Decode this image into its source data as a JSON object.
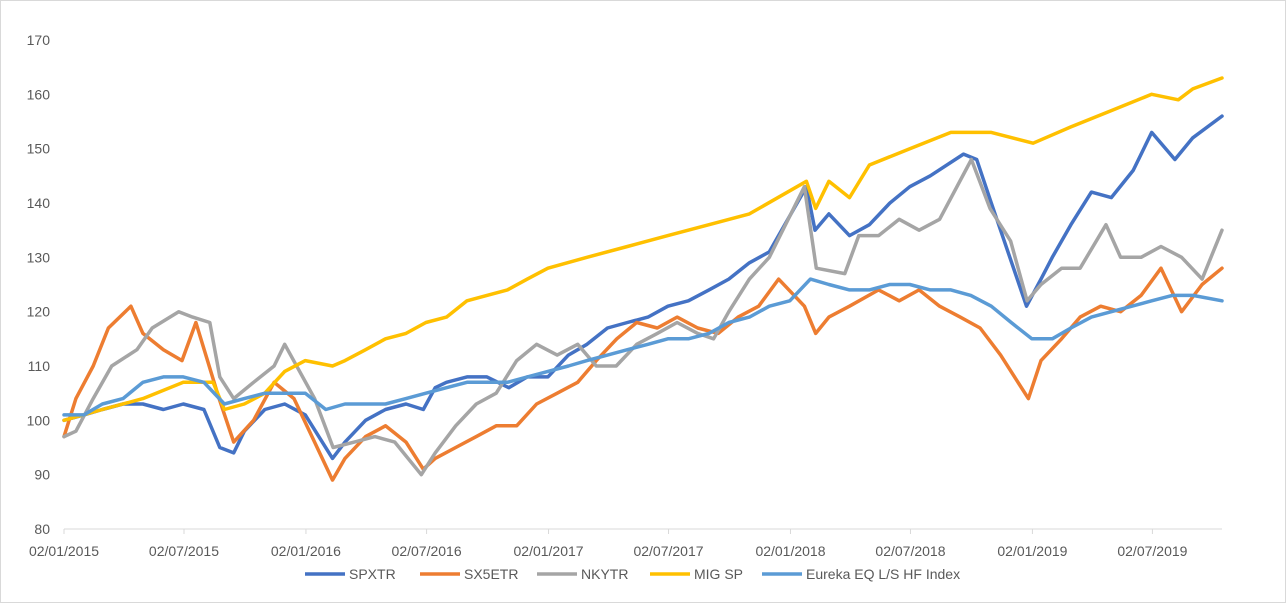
{
  "chart_data": {
    "type": "line",
    "title": "",
    "xlabel": "",
    "ylabel": "",
    "ylim": [
      80,
      170
    ],
    "xlim": [
      "2015-01-02",
      "2019-10-15"
    ],
    "yticks": [
      "80",
      "90",
      "100",
      "110",
      "120",
      "130",
      "140",
      "150",
      "160",
      "170"
    ],
    "xticks": [
      {
        "date": "2015-01-02",
        "label": "02/01/2015"
      },
      {
        "date": "2015-07-02",
        "label": "02/07/2015"
      },
      {
        "date": "2016-01-02",
        "label": "02/01/2016"
      },
      {
        "date": "2016-07-02",
        "label": "02/07/2016"
      },
      {
        "date": "2017-01-02",
        "label": "02/01/2017"
      },
      {
        "date": "2017-07-02",
        "label": "02/07/2017"
      },
      {
        "date": "2018-01-02",
        "label": "02/01/2018"
      },
      {
        "date": "2018-07-02",
        "label": "02/07/2018"
      },
      {
        "date": "2019-01-02",
        "label": "02/01/2019"
      },
      {
        "date": "2019-07-02",
        "label": "02/07/2019"
      }
    ],
    "grid": "horizontal-none",
    "legend": "bottom",
    "series": [
      {
        "name": "SPXTR",
        "color": "#4472c4",
        "x": [
          "2015-01-02",
          "2015-02-01",
          "2015-03-01",
          "2015-04-01",
          "2015-05-01",
          "2015-06-01",
          "2015-07-01",
          "2015-08-01",
          "2015-08-25",
          "2015-09-15",
          "2015-10-01",
          "2015-11-01",
          "2015-12-01",
          "2016-01-01",
          "2016-02-11",
          "2016-03-01",
          "2016-04-01",
          "2016-05-01",
          "2016-06-01",
          "2016-06-27",
          "2016-07-15",
          "2016-08-01",
          "2016-09-01",
          "2016-10-01",
          "2016-11-03",
          "2016-12-01",
          "2017-01-01",
          "2017-02-01",
          "2017-03-01",
          "2017-04-01",
          "2017-05-01",
          "2017-06-01",
          "2017-07-01",
          "2017-08-01",
          "2017-09-01",
          "2017-10-01",
          "2017-11-01",
          "2017-12-01",
          "2018-01-26",
          "2018-02-08",
          "2018-03-01",
          "2018-04-01",
          "2018-05-01",
          "2018-06-01",
          "2018-07-01",
          "2018-08-01",
          "2018-09-20",
          "2018-10-10",
          "2018-11-01",
          "2018-12-24",
          "2019-01-15",
          "2019-02-01",
          "2019-03-01",
          "2019-04-01",
          "2019-05-01",
          "2019-06-03",
          "2019-07-01",
          "2019-08-05",
          "2019-09-01",
          "2019-10-15"
        ],
        "values": [
          100,
          101,
          102,
          103,
          103,
          102,
          103,
          102,
          95,
          94,
          98,
          102,
          103,
          101,
          93,
          96,
          100,
          102,
          103,
          102,
          106,
          107,
          108,
          108,
          106,
          108,
          108,
          112,
          114,
          117,
          118,
          119,
          121,
          122,
          124,
          126,
          129,
          131,
          143,
          135,
          138,
          134,
          136,
          140,
          143,
          145,
          149,
          148,
          140,
          121,
          126,
          130,
          136,
          142,
          141,
          146,
          153,
          148,
          152,
          156
        ]
      },
      {
        "name": "SX5ETR",
        "color": "#ed7d31",
        "x": [
          "2015-01-02",
          "2015-01-20",
          "2015-02-15",
          "2015-03-10",
          "2015-04-13",
          "2015-05-01",
          "2015-06-01",
          "2015-06-29",
          "2015-07-20",
          "2015-08-24",
          "2015-09-15",
          "2015-10-15",
          "2015-11-15",
          "2015-12-15",
          "2016-01-15",
          "2016-02-11",
          "2016-03-01",
          "2016-04-01",
          "2016-05-01",
          "2016-06-01",
          "2016-06-27",
          "2016-07-15",
          "2016-08-15",
          "2016-09-15",
          "2016-10-15",
          "2016-11-15",
          "2016-12-15",
          "2017-01-15",
          "2017-02-15",
          "2017-03-15",
          "2017-04-15",
          "2017-05-15",
          "2017-06-15",
          "2017-07-15",
          "2017-08-15",
          "2017-09-15",
          "2017-10-15",
          "2017-11-15",
          "2017-12-15",
          "2018-01-23",
          "2018-02-09",
          "2018-03-01",
          "2018-04-01",
          "2018-05-15",
          "2018-06-15",
          "2018-07-15",
          "2018-08-15",
          "2018-09-15",
          "2018-10-15",
          "2018-11-15",
          "2018-12-27",
          "2019-01-15",
          "2019-02-15",
          "2019-03-15",
          "2019-04-15",
          "2019-05-15",
          "2019-06-15",
          "2019-07-15",
          "2019-08-15",
          "2019-09-15",
          "2019-10-15"
        ],
        "values": [
          97,
          104,
          110,
          117,
          121,
          116,
          113,
          111,
          118,
          104,
          96,
          100,
          107,
          104,
          96,
          89,
          93,
          97,
          99,
          96,
          91,
          93,
          95,
          97,
          99,
          99,
          103,
          105,
          107,
          111,
          115,
          118,
          117,
          119,
          117,
          116,
          119,
          121,
          126,
          121,
          116,
          119,
          121,
          124,
          122,
          124,
          121,
          119,
          117,
          112,
          104,
          111,
          115,
          119,
          121,
          120,
          123,
          128,
          120,
          125,
          128
        ]
      },
      {
        "name": "NKYTR",
        "color": "#a5a5a5",
        "x": [
          "2015-01-02",
          "2015-01-20",
          "2015-02-15",
          "2015-03-15",
          "2015-04-22",
          "2015-05-15",
          "2015-06-24",
          "2015-07-15",
          "2015-08-10",
          "2015-08-25",
          "2015-09-15",
          "2015-10-15",
          "2015-11-15",
          "2015-12-01",
          "2016-01-15",
          "2016-02-12",
          "2016-03-15",
          "2016-04-15",
          "2016-05-15",
          "2016-06-24",
          "2016-07-15",
          "2016-08-15",
          "2016-09-15",
          "2016-10-15",
          "2016-11-15",
          "2016-12-15",
          "2017-01-15",
          "2017-02-15",
          "2017-03-15",
          "2017-04-14",
          "2017-05-15",
          "2017-06-15",
          "2017-07-15",
          "2017-08-15",
          "2017-09-08",
          "2017-10-01",
          "2017-11-01",
          "2017-12-01",
          "2018-01-23",
          "2018-02-10",
          "2018-03-25",
          "2018-04-15",
          "2018-05-15",
          "2018-06-15",
          "2018-07-15",
          "2018-08-15",
          "2018-10-02",
          "2018-10-30",
          "2018-11-30",
          "2018-12-25",
          "2019-01-15",
          "2019-02-15",
          "2019-03-15",
          "2019-04-23",
          "2019-05-15",
          "2019-06-15",
          "2019-07-15",
          "2019-08-15",
          "2019-09-15",
          "2019-10-15"
        ],
        "values": [
          97,
          98,
          104,
          110,
          113,
          117,
          120,
          119,
          118,
          108,
          104,
          107,
          110,
          114,
          104,
          95,
          96,
          97,
          96,
          90,
          94,
          99,
          103,
          105,
          111,
          114,
          112,
          114,
          110,
          110,
          114,
          116,
          118,
          116,
          115,
          120,
          126,
          130,
          143,
          128,
          127,
          134,
          134,
          137,
          135,
          137,
          148,
          139,
          133,
          122,
          125,
          128,
          128,
          136,
          130,
          130,
          132,
          130,
          126,
          135
        ]
      },
      {
        "name": "MIG SP",
        "color": "#ffc000",
        "x": [
          "2015-01-02",
          "2015-03-01",
          "2015-05-01",
          "2015-07-01",
          "2015-08-15",
          "2015-09-01",
          "2015-10-01",
          "2015-11-01",
          "2015-12-01",
          "2016-01-01",
          "2016-02-11",
          "2016-03-01",
          "2016-04-01",
          "2016-05-01",
          "2016-06-01",
          "2016-07-01",
          "2016-08-01",
          "2016-09-01",
          "2016-10-01",
          "2016-11-01",
          "2016-12-01",
          "2017-01-01",
          "2017-03-01",
          "2017-05-01",
          "2017-07-01",
          "2017-09-01",
          "2017-11-01",
          "2018-01-26",
          "2018-02-09",
          "2018-03-01",
          "2018-04-01",
          "2018-05-01",
          "2018-07-01",
          "2018-09-01",
          "2018-11-01",
          "2019-01-03",
          "2019-03-01",
          "2019-05-01",
          "2019-07-01",
          "2019-08-10",
          "2019-09-01",
          "2019-10-15"
        ],
        "values": [
          100,
          102,
          104,
          107,
          107,
          102,
          103,
          105,
          109,
          111,
          110,
          111,
          113,
          115,
          116,
          118,
          119,
          122,
          123,
          124,
          126,
          128,
          130,
          132,
          134,
          136,
          138,
          144,
          139,
          144,
          141,
          147,
          150,
          153,
          153,
          151,
          154,
          157,
          160,
          159,
          161,
          163
        ]
      },
      {
        "name": "Eureka EQ L/S HF Index",
        "color": "#5b9bd5",
        "x": [
          "2015-01-02",
          "2015-02-01",
          "2015-03-01",
          "2015-04-01",
          "2015-05-01",
          "2015-06-01",
          "2015-07-01",
          "2015-08-01",
          "2015-09-01",
          "2015-10-01",
          "2015-11-01",
          "2015-12-01",
          "2016-01-01",
          "2016-02-01",
          "2016-03-01",
          "2016-04-01",
          "2016-05-01",
          "2016-06-01",
          "2016-07-01",
          "2016-08-01",
          "2016-09-01",
          "2016-10-01",
          "2016-11-01",
          "2016-12-01",
          "2017-01-01",
          "2017-02-01",
          "2017-03-01",
          "2017-04-01",
          "2017-05-01",
          "2017-06-01",
          "2017-07-01",
          "2017-08-01",
          "2017-09-01",
          "2017-10-01",
          "2017-11-01",
          "2017-12-01",
          "2018-01-01",
          "2018-02-01",
          "2018-03-01",
          "2018-04-01",
          "2018-05-01",
          "2018-06-01",
          "2018-07-01",
          "2018-08-01",
          "2018-09-01",
          "2018-10-01",
          "2018-11-01",
          "2018-12-01",
          "2019-01-01",
          "2019-02-01",
          "2019-03-01",
          "2019-04-01",
          "2019-05-01",
          "2019-06-01",
          "2019-07-01",
          "2019-08-01",
          "2019-09-01",
          "2019-10-15"
        ],
        "values": [
          101,
          101,
          103,
          104,
          107,
          108,
          108,
          107,
          103,
          104,
          105,
          105,
          105,
          102,
          103,
          103,
          103,
          104,
          105,
          106,
          107,
          107,
          107,
          108,
          109,
          110,
          111,
          112,
          113,
          114,
          115,
          115,
          116,
          118,
          119,
          121,
          122,
          126,
          125,
          124,
          124,
          125,
          125,
          124,
          124,
          123,
          121,
          118,
          115,
          115,
          117,
          119,
          120,
          121,
          122,
          123,
          123,
          122
        ]
      }
    ]
  },
  "legend": {
    "items": [
      {
        "label": "SPXTR",
        "color": "#4472c4"
      },
      {
        "label": "SX5ETR",
        "color": "#ed7d31"
      },
      {
        "label": "NKYTR",
        "color": "#a5a5a5"
      },
      {
        "label": "MIG SP",
        "color": "#ffc000"
      },
      {
        "label": "Eureka EQ L/S HF Index",
        "color": "#5b9bd5"
      }
    ]
  }
}
